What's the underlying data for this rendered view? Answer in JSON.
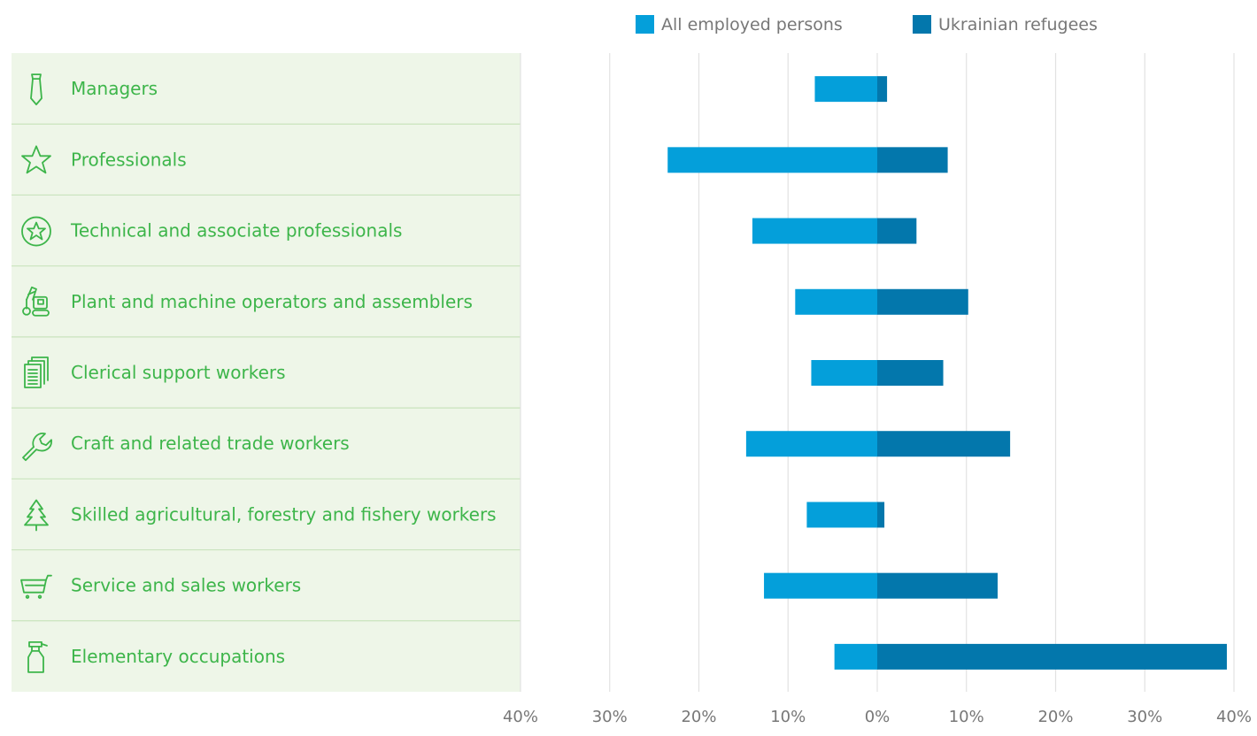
{
  "chart_data": {
    "type": "bar",
    "orientation": "horizontal-diverging",
    "categories": [
      "Managers",
      "Professionals",
      "Technical and associate professionals",
      "Plant and machine operators and assemblers",
      "Clerical support workers",
      "Craft and related trade workers",
      "Skilled agricultural, forestry and fishery workers",
      "Service and sales workers",
      "Elementary occupations"
    ],
    "category_icons": [
      "necktie-icon",
      "star-icon",
      "star-in-circle-icon",
      "crane-machine-icon",
      "documents-icon",
      "wrench-icon",
      "pine-tree-icon",
      "shopping-cart-icon",
      "spray-bottle-icon"
    ],
    "series": [
      {
        "name": "All employed persons",
        "side": "left",
        "color": "#049fda",
        "values": [
          7,
          23.5,
          14,
          9.2,
          7.4,
          14.7,
          7.9,
          12.7,
          4.8
        ]
      },
      {
        "name": "Ukrainian refugees",
        "side": "right",
        "color": "#0377ac",
        "values": [
          1.1,
          7.9,
          4.4,
          10.2,
          7.4,
          14.9,
          0.8,
          13.5,
          39.2
        ]
      }
    ],
    "xlim": [
      -40,
      40
    ],
    "xticks": [
      "40%",
      "30%",
      "20%",
      "10%",
      "0%",
      "10%",
      "20%",
      "30%",
      "40%"
    ],
    "grid": true,
    "legend_position": "top-right",
    "colors": {
      "label_text": "#3db54a",
      "label_panel": "#eef6e8",
      "separator": "#c9e3bd",
      "grid": "#e2e2e2",
      "tick_text": "#777777"
    }
  }
}
